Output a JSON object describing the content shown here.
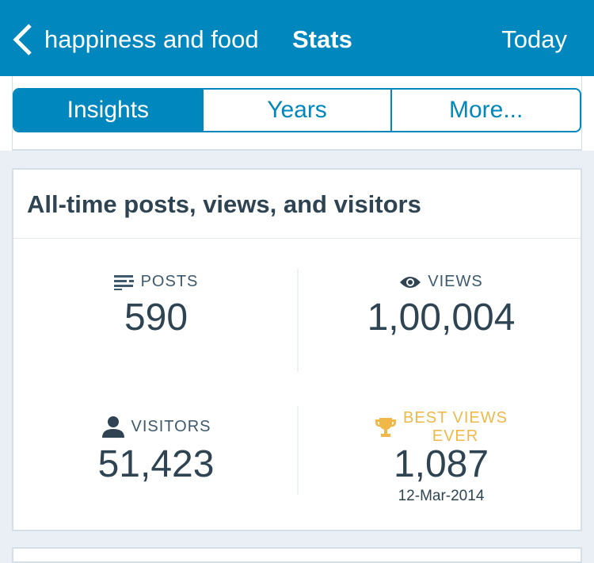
{
  "header": {
    "site": "happiness and food",
    "title": "Stats",
    "today": "Today"
  },
  "tabs": [
    {
      "label": "Insights",
      "selected": true
    },
    {
      "label": "Years"
    },
    {
      "label": "More..."
    }
  ],
  "card": {
    "title": "All-time posts, views, and visitors",
    "posts": {
      "label": "POSTS",
      "value": "590",
      "icon": "posts-icon"
    },
    "views": {
      "label": "VIEWS",
      "value": "1,00,004",
      "icon": "eye-icon"
    },
    "visitors": {
      "label": "VISITORS",
      "value": "51,423",
      "icon": "person-icon"
    },
    "best": {
      "label_line1": "BEST VIEWS",
      "label_line2": "EVER",
      "value": "1,087",
      "date": "12-Mar-2014",
      "icon": "trophy-icon",
      "color": "#f0b849"
    }
  }
}
